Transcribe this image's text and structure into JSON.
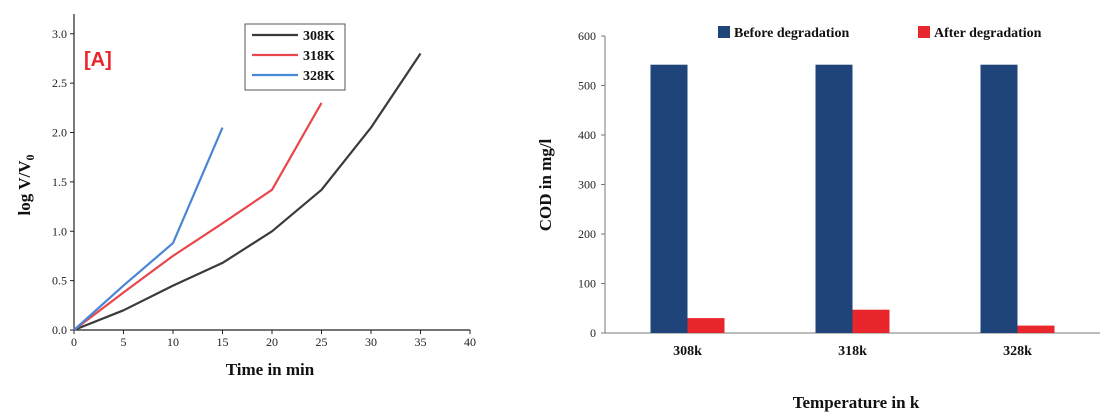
{
  "chart_data": [
    {
      "type": "line",
      "panel_label": "[A]",
      "xlabel": "Time in min",
      "ylabel": "log V/V",
      "ylabel_subscript": "0",
      "xlim": [
        0,
        40
      ],
      "ylim": [
        0,
        3.2
      ],
      "x_ticks": [
        "0",
        "5",
        "10",
        "15",
        "20",
        "25",
        "30",
        "35",
        "40"
      ],
      "y_ticks": [
        "0.0",
        "0.5",
        "1.0",
        "1.5",
        "2.0",
        "2.5",
        "3.0"
      ],
      "legend_position": "top-right",
      "series": [
        {
          "name": "308K",
          "color": "#3a3a3a",
          "x": [
            0,
            5,
            10,
            15,
            20,
            25,
            30,
            35
          ],
          "y": [
            0,
            0.2,
            0.45,
            0.68,
            1.0,
            1.42,
            2.05,
            2.8
          ]
        },
        {
          "name": "318K",
          "color": "#e8474d",
          "x": [
            0,
            5,
            10,
            15,
            20,
            25
          ],
          "y": [
            0,
            0.38,
            0.75,
            1.08,
            1.42,
            2.3
          ]
        },
        {
          "name": "328K",
          "color": "#4a86d6",
          "x": [
            0,
            5,
            10,
            15
          ],
          "y": [
            0,
            0.45,
            0.88,
            2.05
          ]
        }
      ]
    },
    {
      "type": "bar",
      "xlabel": "Temperature in k",
      "ylabel": "COD in mg/l",
      "ylim": [
        0,
        600
      ],
      "y_ticks": [
        "0",
        "100",
        "200",
        "300",
        "400",
        "500",
        "600"
      ],
      "categories": [
        "308k",
        "318k",
        "328k"
      ],
      "legend_position": "top",
      "series": [
        {
          "name": "Before degradation",
          "color": "#1f4479",
          "values": [
            542,
            542,
            542
          ]
        },
        {
          "name": "After degradation",
          "color": "#e8262b",
          "values": [
            30,
            47,
            15
          ]
        }
      ]
    }
  ]
}
